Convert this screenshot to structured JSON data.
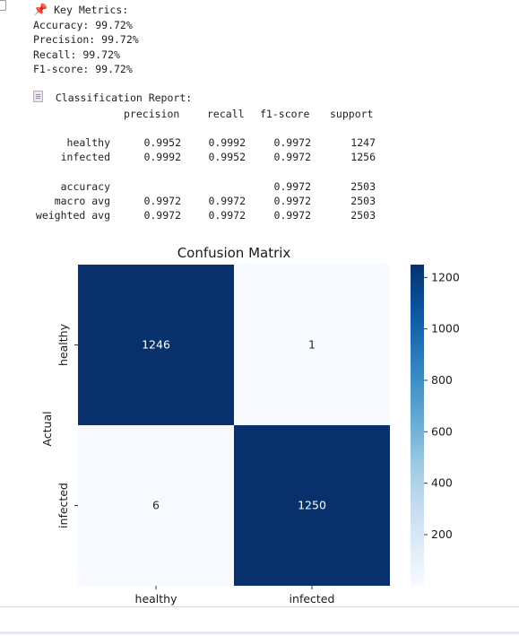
{
  "metrics": {
    "header": "Key Metrics:",
    "icon": "pushpin-icon",
    "accuracy": "Accuracy: 99.72%",
    "precision": "Precision: 99.72%",
    "recall": "Recall: 99.72%",
    "f1": "F1-score: 99.72%"
  },
  "report": {
    "header": "Classification Report:",
    "icon": "page-icon",
    "columns": [
      "precision",
      "recall",
      "f1-score",
      "support"
    ],
    "rows": [
      {
        "label": "healthy",
        "precision": "0.9952",
        "recall": "0.9992",
        "f1": "0.9972",
        "support": "1247"
      },
      {
        "label": "infected",
        "precision": "0.9992",
        "recall": "0.9952",
        "f1": "0.9972",
        "support": "1256"
      }
    ],
    "summary": [
      {
        "label": "accuracy",
        "precision": "",
        "recall": "",
        "f1": "0.9972",
        "support": "2503"
      },
      {
        "label": "macro avg",
        "precision": "0.9972",
        "recall": "0.9972",
        "f1": "0.9972",
        "support": "2503"
      },
      {
        "label": "weighted avg",
        "precision": "0.9972",
        "recall": "0.9972",
        "f1": "0.9972",
        "support": "2503"
      }
    ]
  },
  "chart_data": {
    "type": "heatmap",
    "title": "Confusion Matrix",
    "xlabel": "",
    "ylabel": "Actual",
    "x_categories": [
      "healthy",
      "infected"
    ],
    "y_categories": [
      "healthy",
      "infected"
    ],
    "values": [
      [
        1246,
        1
      ],
      [
        6,
        1250
      ]
    ],
    "colormap": "Blues",
    "colorbar": {
      "ticks": [
        200,
        400,
        600,
        800,
        1000,
        1200
      ],
      "min": 1,
      "max": 1250
    },
    "colors": {
      "high": "#08306b",
      "low": "#f7fbff"
    }
  }
}
